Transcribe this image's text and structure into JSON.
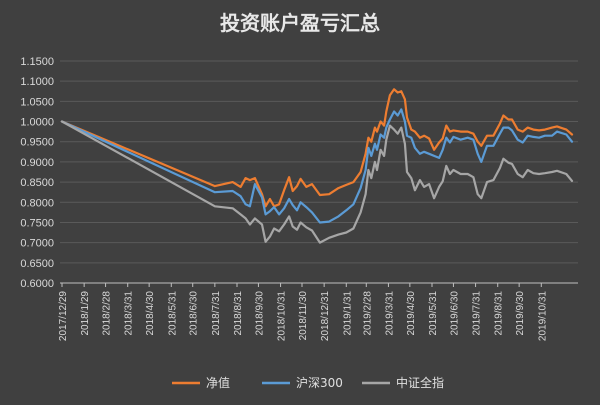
{
  "chart_data": {
    "type": "line",
    "title": "投资账户盈亏汇总",
    "xlabel": "",
    "ylabel": "",
    "ylim": [
      0.6,
      1.15
    ],
    "yticks": [
      "0.6000",
      "0.6500",
      "0.7000",
      "0.7500",
      "0.8000",
      "0.8500",
      "0.9000",
      "0.9500",
      "1.0000",
      "1.0500",
      "1.1000",
      "1.1500"
    ],
    "xticks": [
      "2017/12/29",
      "2018/1/29",
      "2018/2/28",
      "2018/3/31",
      "2018/4/30",
      "2018/5/31",
      "2018/6/30",
      "2018/7/31",
      "2018/8/31",
      "2018/9/30",
      "2018/10/31",
      "2018/11/30",
      "2018/12/31",
      "2019/1/31",
      "2019/2/28",
      "2019/3/31",
      "2019/4/30",
      "2019/5/31",
      "2019/6/30",
      "2019/7/31",
      "2019/8/31",
      "2019/9/30",
      "2019/10/31"
    ],
    "x_range": [
      "2017-12-29",
      "2019-12-13"
    ],
    "grid": true,
    "legend": "bottom",
    "series": [
      {
        "name": "净值",
        "color": "#ed7d31",
        "points": [
          [
            "2017-12-29",
            1.0
          ],
          [
            "2018-07-31",
            0.84
          ],
          [
            "2018-08-25",
            0.85
          ],
          [
            "2018-09-05",
            0.838
          ],
          [
            "2018-09-12",
            0.86
          ],
          [
            "2018-09-18",
            0.855
          ],
          [
            "2018-09-25",
            0.86
          ],
          [
            "2018-10-05",
            0.82
          ],
          [
            "2018-10-10",
            0.79
          ],
          [
            "2018-10-16",
            0.808
          ],
          [
            "2018-10-22",
            0.79
          ],
          [
            "2018-10-29",
            0.795
          ],
          [
            "2018-11-05",
            0.83
          ],
          [
            "2018-11-12",
            0.862
          ],
          [
            "2018-11-17",
            0.828
          ],
          [
            "2018-11-23",
            0.84
          ],
          [
            "2018-11-28",
            0.858
          ],
          [
            "2018-12-06",
            0.838
          ],
          [
            "2018-12-14",
            0.845
          ],
          [
            "2018-12-25",
            0.818
          ],
          [
            "2019-01-07",
            0.82
          ],
          [
            "2019-01-20",
            0.835
          ],
          [
            "2019-01-31",
            0.843
          ],
          [
            "2019-02-10",
            0.85
          ],
          [
            "2019-02-20",
            0.875
          ],
          [
            "2019-02-27",
            0.92
          ],
          [
            "2019-03-03",
            0.96
          ],
          [
            "2019-03-07",
            0.95
          ],
          [
            "2019-03-12",
            0.985
          ],
          [
            "2019-03-15",
            0.975
          ],
          [
            "2019-03-20",
            1.0
          ],
          [
            "2019-03-25",
            0.99
          ],
          [
            "2019-03-28",
            1.025
          ],
          [
            "2019-04-02",
            1.065
          ],
          [
            "2019-04-08",
            1.08
          ],
          [
            "2019-04-13",
            1.072
          ],
          [
            "2019-04-18",
            1.075
          ],
          [
            "2019-04-23",
            1.055
          ],
          [
            "2019-04-26",
            1.01
          ],
          [
            "2019-05-02",
            0.98
          ],
          [
            "2019-05-07",
            0.975
          ],
          [
            "2019-05-14",
            0.96
          ],
          [
            "2019-05-20",
            0.965
          ],
          [
            "2019-05-27",
            0.958
          ],
          [
            "2019-06-03",
            0.93
          ],
          [
            "2019-06-10",
            0.948
          ],
          [
            "2019-06-15",
            0.958
          ],
          [
            "2019-06-20",
            0.99
          ],
          [
            "2019-06-25",
            0.975
          ],
          [
            "2019-06-30",
            0.978
          ],
          [
            "2019-07-10",
            0.975
          ],
          [
            "2019-07-20",
            0.975
          ],
          [
            "2019-07-28",
            0.97
          ],
          [
            "2019-08-03",
            0.95
          ],
          [
            "2019-08-08",
            0.94
          ],
          [
            "2019-08-16",
            0.965
          ],
          [
            "2019-08-25",
            0.965
          ],
          [
            "2019-09-03",
            0.995
          ],
          [
            "2019-09-08",
            1.015
          ],
          [
            "2019-09-15",
            1.005
          ],
          [
            "2019-09-20",
            1.005
          ],
          [
            "2019-09-28",
            0.98
          ],
          [
            "2019-10-05",
            0.975
          ],
          [
            "2019-10-12",
            0.985
          ],
          [
            "2019-10-20",
            0.98
          ],
          [
            "2019-10-28",
            0.978
          ],
          [
            "2019-11-05",
            0.98
          ],
          [
            "2019-11-15",
            0.985
          ],
          [
            "2019-11-22",
            0.988
          ],
          [
            "2019-12-05",
            0.98
          ],
          [
            "2019-12-13",
            0.968
          ]
        ]
      },
      {
        "name": "沪深300",
        "color": "#5b9bd5",
        "points": [
          [
            "2017-12-29",
            1.0
          ],
          [
            "2018-07-31",
            0.825
          ],
          [
            "2018-08-25",
            0.828
          ],
          [
            "2018-09-05",
            0.815
          ],
          [
            "2018-09-12",
            0.795
          ],
          [
            "2018-09-18",
            0.79
          ],
          [
            "2018-09-25",
            0.845
          ],
          [
            "2018-10-05",
            0.812
          ],
          [
            "2018-10-10",
            0.77
          ],
          [
            "2018-10-16",
            0.778
          ],
          [
            "2018-10-22",
            0.788
          ],
          [
            "2018-10-29",
            0.77
          ],
          [
            "2018-11-05",
            0.785
          ],
          [
            "2018-11-12",
            0.808
          ],
          [
            "2018-11-17",
            0.793
          ],
          [
            "2018-11-23",
            0.78
          ],
          [
            "2018-11-28",
            0.8
          ],
          [
            "2018-12-06",
            0.788
          ],
          [
            "2018-12-14",
            0.775
          ],
          [
            "2018-12-25",
            0.75
          ],
          [
            "2019-01-07",
            0.752
          ],
          [
            "2019-01-20",
            0.765
          ],
          [
            "2019-01-31",
            0.78
          ],
          [
            "2019-02-10",
            0.795
          ],
          [
            "2019-02-20",
            0.835
          ],
          [
            "2019-02-27",
            0.88
          ],
          [
            "2019-03-03",
            0.935
          ],
          [
            "2019-03-07",
            0.915
          ],
          [
            "2019-03-12",
            0.945
          ],
          [
            "2019-03-15",
            0.93
          ],
          [
            "2019-03-20",
            0.968
          ],
          [
            "2019-03-25",
            0.96
          ],
          [
            "2019-03-28",
            0.985
          ],
          [
            "2019-04-02",
            1.005
          ],
          [
            "2019-04-08",
            1.025
          ],
          [
            "2019-04-13",
            1.015
          ],
          [
            "2019-04-18",
            1.03
          ],
          [
            "2019-04-23",
            1.0
          ],
          [
            "2019-04-26",
            0.965
          ],
          [
            "2019-05-02",
            0.96
          ],
          [
            "2019-05-07",
            0.935
          ],
          [
            "2019-05-14",
            0.92
          ],
          [
            "2019-05-20",
            0.925
          ],
          [
            "2019-05-27",
            0.92
          ],
          [
            "2019-06-03",
            0.915
          ],
          [
            "2019-06-10",
            0.91
          ],
          [
            "2019-06-15",
            0.93
          ],
          [
            "2019-06-20",
            0.96
          ],
          [
            "2019-06-25",
            0.948
          ],
          [
            "2019-06-30",
            0.962
          ],
          [
            "2019-07-10",
            0.955
          ],
          [
            "2019-07-20",
            0.96
          ],
          [
            "2019-07-28",
            0.955
          ],
          [
            "2019-08-03",
            0.92
          ],
          [
            "2019-08-08",
            0.9
          ],
          [
            "2019-08-16",
            0.94
          ],
          [
            "2019-08-25",
            0.94
          ],
          [
            "2019-09-03",
            0.97
          ],
          [
            "2019-09-08",
            0.985
          ],
          [
            "2019-09-15",
            0.985
          ],
          [
            "2019-09-20",
            0.978
          ],
          [
            "2019-09-28",
            0.955
          ],
          [
            "2019-10-05",
            0.948
          ],
          [
            "2019-10-12",
            0.965
          ],
          [
            "2019-10-20",
            0.962
          ],
          [
            "2019-10-28",
            0.96
          ],
          [
            "2019-11-05",
            0.965
          ],
          [
            "2019-11-15",
            0.965
          ],
          [
            "2019-11-22",
            0.975
          ],
          [
            "2019-12-05",
            0.968
          ],
          [
            "2019-12-13",
            0.95
          ]
        ]
      },
      {
        "name": "中证全指",
        "color": "#a6a6a6",
        "points": [
          [
            "2017-12-29",
            1.0
          ],
          [
            "2018-07-31",
            0.79
          ],
          [
            "2018-08-25",
            0.785
          ],
          [
            "2018-09-05",
            0.77
          ],
          [
            "2018-09-12",
            0.76
          ],
          [
            "2018-09-18",
            0.745
          ],
          [
            "2018-09-25",
            0.76
          ],
          [
            "2018-10-05",
            0.745
          ],
          [
            "2018-10-10",
            0.702
          ],
          [
            "2018-10-16",
            0.715
          ],
          [
            "2018-10-22",
            0.735
          ],
          [
            "2018-10-29",
            0.728
          ],
          [
            "2018-11-05",
            0.745
          ],
          [
            "2018-11-12",
            0.765
          ],
          [
            "2018-11-17",
            0.74
          ],
          [
            "2018-11-23",
            0.732
          ],
          [
            "2018-11-28",
            0.75
          ],
          [
            "2018-12-06",
            0.738
          ],
          [
            "2018-12-14",
            0.73
          ],
          [
            "2018-12-25",
            0.7
          ],
          [
            "2019-01-07",
            0.712
          ],
          [
            "2019-01-20",
            0.72
          ],
          [
            "2019-01-31",
            0.725
          ],
          [
            "2019-02-10",
            0.735
          ],
          [
            "2019-02-20",
            0.775
          ],
          [
            "2019-02-27",
            0.82
          ],
          [
            "2019-03-03",
            0.88
          ],
          [
            "2019-03-07",
            0.86
          ],
          [
            "2019-03-12",
            0.9
          ],
          [
            "2019-03-15",
            0.88
          ],
          [
            "2019-03-20",
            0.93
          ],
          [
            "2019-03-25",
            0.915
          ],
          [
            "2019-03-28",
            0.955
          ],
          [
            "2019-04-02",
            0.99
          ],
          [
            "2019-04-08",
            0.98
          ],
          [
            "2019-04-13",
            0.97
          ],
          [
            "2019-04-18",
            0.985
          ],
          [
            "2019-04-23",
            0.945
          ],
          [
            "2019-04-26",
            0.875
          ],
          [
            "2019-05-02",
            0.86
          ],
          [
            "2019-05-07",
            0.83
          ],
          [
            "2019-05-14",
            0.855
          ],
          [
            "2019-05-20",
            0.838
          ],
          [
            "2019-05-27",
            0.845
          ],
          [
            "2019-06-03",
            0.81
          ],
          [
            "2019-06-10",
            0.838
          ],
          [
            "2019-06-15",
            0.852
          ],
          [
            "2019-06-20",
            0.89
          ],
          [
            "2019-06-25",
            0.87
          ],
          [
            "2019-06-30",
            0.88
          ],
          [
            "2019-07-10",
            0.87
          ],
          [
            "2019-07-20",
            0.87
          ],
          [
            "2019-07-28",
            0.862
          ],
          [
            "2019-08-03",
            0.82
          ],
          [
            "2019-08-08",
            0.81
          ],
          [
            "2019-08-16",
            0.85
          ],
          [
            "2019-08-25",
            0.855
          ],
          [
            "2019-09-03",
            0.885
          ],
          [
            "2019-09-08",
            0.908
          ],
          [
            "2019-09-15",
            0.898
          ],
          [
            "2019-09-20",
            0.895
          ],
          [
            "2019-09-28",
            0.87
          ],
          [
            "2019-10-05",
            0.862
          ],
          [
            "2019-10-12",
            0.88
          ],
          [
            "2019-10-20",
            0.872
          ],
          [
            "2019-10-28",
            0.87
          ],
          [
            "2019-11-05",
            0.872
          ],
          [
            "2019-11-15",
            0.875
          ],
          [
            "2019-11-22",
            0.878
          ],
          [
            "2019-12-05",
            0.87
          ],
          [
            "2019-12-13",
            0.853
          ]
        ]
      }
    ]
  }
}
